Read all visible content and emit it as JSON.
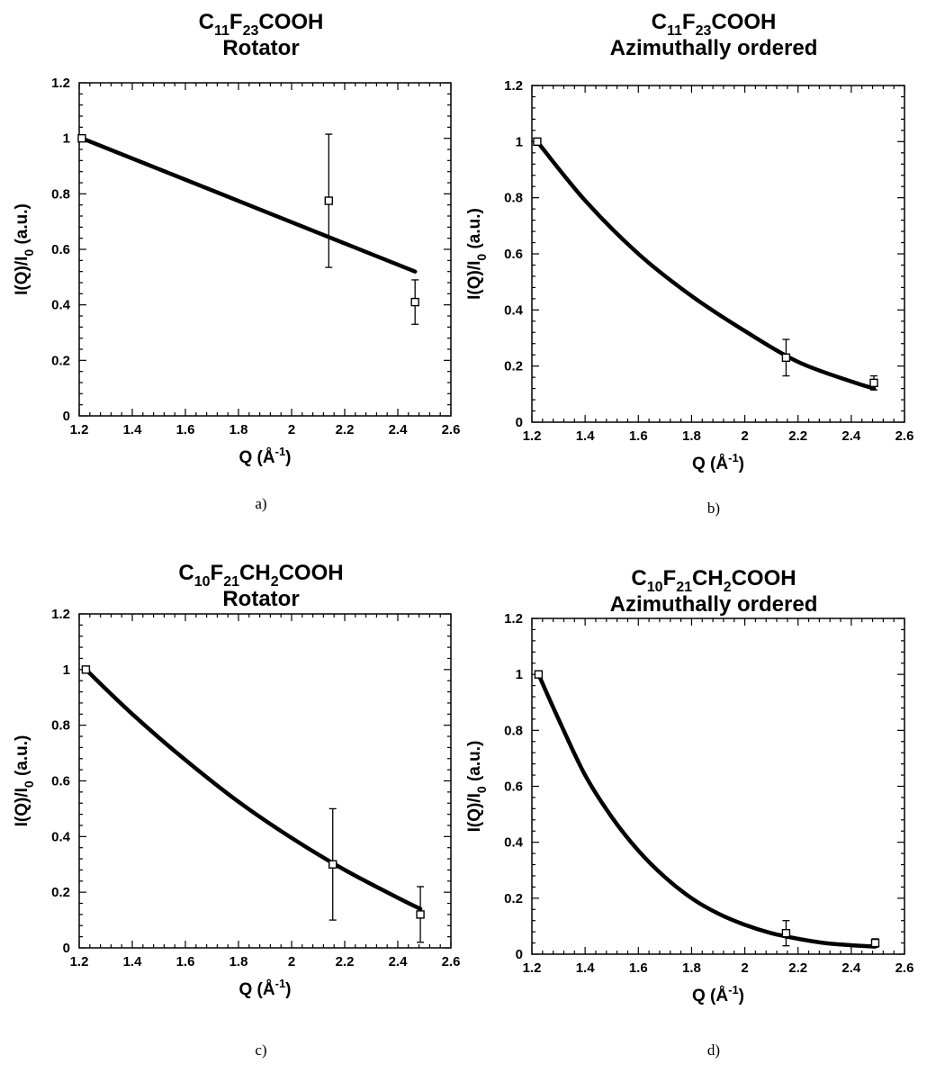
{
  "chart_data": [
    {
      "type": "scatter",
      "panel": "a)",
      "title": {
        "c1": "11",
        "f": "23",
        "mid": "",
        "c2": "",
        "tail": "COOH"
      },
      "subtitle": "Rotator",
      "xlabel": "Q",
      "xunit": "Å",
      "xunit_exp": "-1",
      "ylabel": "I(Q)/I",
      "ylabel_sub": "0",
      "ylabel_unit": " (a.u.)",
      "xlim": [
        1.2,
        2.6
      ],
      "ylim": [
        0,
        1.2
      ],
      "xticks": [
        "1.2",
        "1.4",
        "1.6",
        "1.8",
        "2",
        "2.2",
        "2.4",
        "2.6"
      ],
      "yticks": [
        "0",
        "0.2",
        "0.4",
        "0.6",
        "0.8",
        "1",
        "1.2"
      ],
      "points": [
        {
          "x": 1.21,
          "y": 1.0,
          "err": 0
        },
        {
          "x": 2.14,
          "y": 0.775,
          "err": 0.24
        },
        {
          "x": 2.465,
          "y": 0.41,
          "err": 0.08
        }
      ],
      "fit": {
        "model": "linear",
        "x": [
          1.21,
          2.465
        ],
        "y": [
          1.0,
          0.52
        ]
      }
    },
    {
      "type": "scatter",
      "panel": "b)",
      "title": {
        "c1": "11",
        "f": "23",
        "mid": "",
        "c2": "",
        "tail": "COOH"
      },
      "subtitle": "Azimuthally ordered",
      "xlabel": "Q",
      "xunit": "Å",
      "xunit_exp": "-1",
      "ylabel": "I(Q)/I",
      "ylabel_sub": "0",
      "ylabel_unit": " (a.u.)",
      "xlim": [
        1.2,
        2.6
      ],
      "ylim": [
        0,
        1.2
      ],
      "xticks": [
        "1.2",
        "1.4",
        "1.6",
        "1.8",
        "2",
        "2.2",
        "2.4",
        "2.6"
      ],
      "yticks": [
        "0",
        "0.2",
        "0.4",
        "0.6",
        "0.8",
        "1",
        "1.2"
      ],
      "points": [
        {
          "x": 1.22,
          "y": 1.0,
          "err": 0
        },
        {
          "x": 2.155,
          "y": 0.23,
          "err": 0.065
        },
        {
          "x": 2.485,
          "y": 0.14,
          "err": 0.025
        }
      ],
      "fit": {
        "model": "curve",
        "x": [
          1.22,
          1.4,
          1.6,
          1.8,
          2.0,
          2.2,
          2.4,
          2.485
        ],
        "y": [
          1.0,
          0.79,
          0.6,
          0.45,
          0.325,
          0.215,
          0.145,
          0.12
        ]
      }
    },
    {
      "type": "scatter",
      "panel": "c)",
      "title": {
        "c1": "10",
        "f": "21",
        "mid": "CH",
        "c2": "2",
        "tail": "COOH"
      },
      "subtitle": "Rotator",
      "xlabel": "Q",
      "xunit": "Å",
      "xunit_exp": "-1",
      "ylabel": "I(Q)/I",
      "ylabel_sub": "0",
      "ylabel_unit": " (a.u.)",
      "xlim": [
        1.2,
        2.6
      ],
      "ylim": [
        0,
        1.2
      ],
      "xticks": [
        "1.2",
        "1.4",
        "1.6",
        "1.8",
        "2",
        "2.2",
        "2.4",
        "2.6"
      ],
      "yticks": [
        "0",
        "0.2",
        "0.4",
        "0.6",
        "0.8",
        "1",
        "1.2"
      ],
      "points": [
        {
          "x": 1.225,
          "y": 1.0,
          "err": 0
        },
        {
          "x": 2.155,
          "y": 0.3,
          "err": 0.2
        },
        {
          "x": 2.485,
          "y": 0.12,
          "err": 0.1
        }
      ],
      "fit": {
        "model": "curve",
        "x": [
          1.225,
          1.4,
          1.6,
          1.8,
          2.0,
          2.2,
          2.4,
          2.485
        ],
        "y": [
          1.0,
          0.84,
          0.675,
          0.525,
          0.395,
          0.28,
          0.18,
          0.14
        ]
      }
    },
    {
      "type": "scatter",
      "panel": "d)",
      "title": {
        "c1": "10",
        "f": "21",
        "mid": "CH",
        "c2": "2",
        "tail": "COOH"
      },
      "subtitle": "Azimuthally ordered",
      "xlabel": "Q",
      "xunit": "Å",
      "xunit_exp": "-1",
      "ylabel": "I(Q)/I",
      "ylabel_sub": "0",
      "ylabel_unit": " (a.u.)",
      "xlim": [
        1.2,
        2.6
      ],
      "ylim": [
        0,
        1.2
      ],
      "xticks": [
        "1.2",
        "1.4",
        "1.6",
        "1.8",
        "2",
        "2.2",
        "2.4",
        "2.6"
      ],
      "yticks": [
        "0",
        "0.2",
        "0.4",
        "0.6",
        "0.8",
        "1",
        "1.2"
      ],
      "points": [
        {
          "x": 1.225,
          "y": 1.0,
          "err": 0
        },
        {
          "x": 2.155,
          "y": 0.075,
          "err": 0.045
        },
        {
          "x": 2.49,
          "y": 0.04,
          "err": 0.015
        }
      ],
      "fit": {
        "model": "curve",
        "x": [
          1.225,
          1.3,
          1.4,
          1.5,
          1.6,
          1.7,
          1.8,
          1.9,
          2.0,
          2.1,
          2.2,
          2.3,
          2.4,
          2.49
        ],
        "y": [
          1.0,
          0.84,
          0.64,
          0.49,
          0.37,
          0.275,
          0.2,
          0.145,
          0.105,
          0.075,
          0.055,
          0.04,
          0.032,
          0.027
        ]
      }
    }
  ]
}
